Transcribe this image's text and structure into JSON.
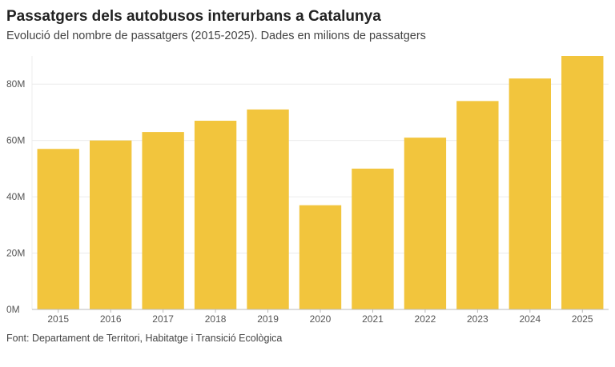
{
  "title": "Passatgers dels autobusos interurbans a Catalunya",
  "subtitle": "Evolució del nombre de passatgers (2015-2025). Dades en milions de passatgers",
  "source": "Font: Departament de Territori, Habitatge i Transició Ecològica",
  "colors": {
    "bar": "#f2c53d",
    "grid": "#ececec",
    "axis": "#bbbbbb"
  },
  "chart_data": {
    "type": "bar",
    "categories": [
      "2015",
      "2016",
      "2017",
      "2018",
      "2019",
      "2020",
      "2021",
      "2022",
      "2023",
      "2024",
      "2025"
    ],
    "values": [
      57,
      60,
      63,
      67,
      71,
      37,
      50,
      61,
      74,
      82,
      90
    ],
    "ylim": [
      0,
      90
    ],
    "yticks": [
      0,
      20,
      40,
      60,
      80
    ],
    "ytick_labels": [
      "0M",
      "20M",
      "40M",
      "60M",
      "80M"
    ],
    "grid": true,
    "xlabel": "",
    "ylabel": ""
  }
}
